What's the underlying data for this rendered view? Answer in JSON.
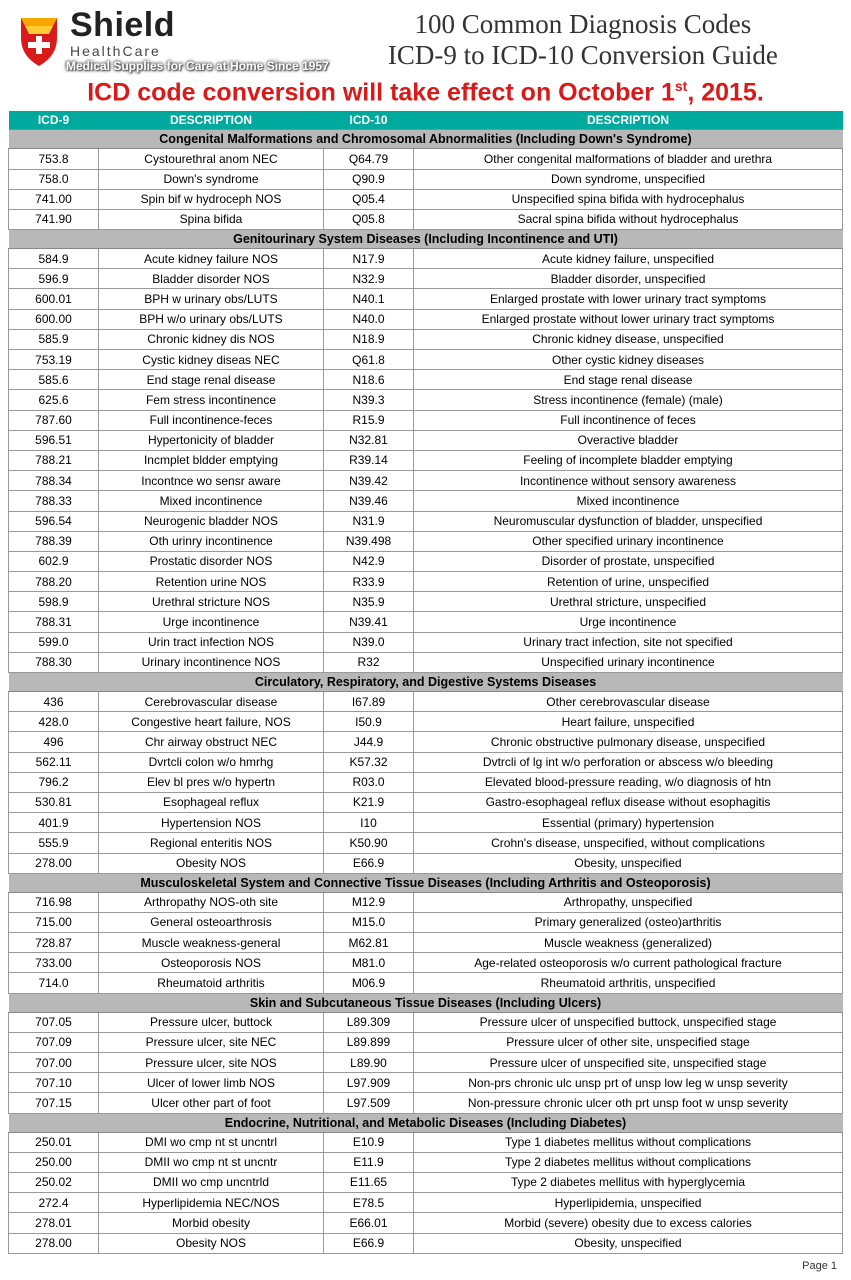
{
  "logo": {
    "name": "Shield",
    "sub": "HealthCare",
    "tagline": "Medical Supplies for Care at Home Since 1957"
  },
  "title": {
    "line1": "100 Common Diagnosis Codes",
    "line2": "ICD-9 to ICD-10 Conversion Guide"
  },
  "alert": "ICD code conversion will take effect on October 1",
  "alert_suffix": ", 2015.",
  "alert_sup": "st",
  "headers": {
    "icd9": "ICD-9",
    "desc1": "DESCRIPTION",
    "icd10": "ICD-10",
    "desc2": "DESCRIPTION"
  },
  "colors": {
    "header_bg": "#00a99d",
    "section_bg": "#b8b8b8",
    "alert": "#d91a1a",
    "logo_red": "#d91a1a",
    "logo_yellow": "#f7a600"
  },
  "sections": [
    {
      "title": "Congenital Malformations and Chromosomal Abnormalities (Including Down's Syndrome)",
      "rows": [
        [
          "753.8",
          "Cystourethral anom NEC",
          "Q64.79",
          "Other congenital malformations of bladder and urethra"
        ],
        [
          "758.0",
          "Down's syndrome",
          "Q90.9",
          "Down syndrome, unspecified"
        ],
        [
          "741.00",
          "Spin bif w hydroceph NOS",
          "Q05.4",
          "Unspecified spina bifida with hydrocephalus"
        ],
        [
          "741.90",
          "Spina bifida",
          "Q05.8",
          "Sacral spina bifida without hydrocephalus"
        ]
      ]
    },
    {
      "title": "Genitourinary System Diseases (Including Incontinence and UTI)",
      "rows": [
        [
          "584.9",
          "Acute kidney failure NOS",
          "N17.9",
          "Acute kidney failure, unspecified"
        ],
        [
          "596.9",
          "Bladder disorder NOS",
          "N32.9",
          "Bladder disorder, unspecified"
        ],
        [
          "600.01",
          "BPH w urinary obs/LUTS",
          "N40.1",
          "Enlarged prostate with lower urinary tract symptoms"
        ],
        [
          "600.00",
          "BPH w/o urinary obs/LUTS",
          "N40.0",
          "Enlarged prostate without lower urinary tract symptoms"
        ],
        [
          "585.9",
          "Chronic kidney dis NOS",
          "N18.9",
          "Chronic kidney disease, unspecified"
        ],
        [
          "753.19",
          "Cystic kidney diseas NEC",
          "Q61.8",
          "Other cystic kidney diseases"
        ],
        [
          "585.6",
          "End stage renal disease",
          "N18.6",
          "End stage renal disease"
        ],
        [
          "625.6",
          "Fem stress incontinence",
          "N39.3",
          "Stress incontinence (female) (male)"
        ],
        [
          "787.60",
          "Full incontinence-feces",
          "R15.9",
          "Full incontinence of feces"
        ],
        [
          "596.51",
          "Hypertonicity of bladder",
          "N32.81",
          "Overactive bladder"
        ],
        [
          "788.21",
          "Incmplet bldder emptying",
          "R39.14",
          "Feeling of incomplete bladder emptying"
        ],
        [
          "788.34",
          "Incontnce wo sensr aware",
          "N39.42",
          "Incontinence without sensory awareness"
        ],
        [
          "788.33",
          "Mixed incontinence",
          "N39.46",
          "Mixed incontinence"
        ],
        [
          "596.54",
          "Neurogenic bladder NOS",
          "N31.9",
          "Neuromuscular dysfunction of bladder, unspecified"
        ],
        [
          "788.39",
          "Oth urinry incontinence",
          "N39.498",
          "Other specified urinary incontinence"
        ],
        [
          "602.9",
          "Prostatic disorder NOS",
          "N42.9",
          "Disorder of prostate, unspecified"
        ],
        [
          "788.20",
          "Retention urine NOS",
          "R33.9",
          "Retention of urine, unspecified"
        ],
        [
          "598.9",
          "Urethral stricture NOS",
          "N35.9",
          "Urethral stricture, unspecified"
        ],
        [
          "788.31",
          "Urge incontinence",
          "N39.41",
          "Urge incontinence"
        ],
        [
          "599.0",
          "Urin tract infection NOS",
          "N39.0",
          "Urinary tract infection, site not specified"
        ],
        [
          "788.30",
          "Urinary incontinence NOS",
          "R32",
          "Unspecified urinary incontinence"
        ]
      ]
    },
    {
      "title": "Circulatory, Respiratory, and Digestive Systems Diseases",
      "rows": [
        [
          "436",
          "Cerebrovascular disease",
          "I67.89",
          "Other cerebrovascular disease"
        ],
        [
          "428.0",
          "Congestive heart failure, NOS",
          "I50.9",
          "Heart failure, unspecified"
        ],
        [
          "496",
          "Chr airway obstruct NEC",
          "J44.9",
          "Chronic obstructive pulmonary disease, unspecified"
        ],
        [
          "562.11",
          "Dvrtcli colon w/o hmrhg",
          "K57.32",
          "Dvtrcli of lg int w/o perforation or abscess w/o bleeding"
        ],
        [
          "796.2",
          "Elev bl pres w/o hypertn",
          "R03.0",
          "Elevated blood-pressure reading, w/o diagnosis of htn"
        ],
        [
          "530.81",
          "Esophageal reflux",
          "K21.9",
          "Gastro-esophageal reflux disease without esophagitis"
        ],
        [
          "401.9",
          "Hypertension NOS",
          "I10",
          "Essential (primary) hypertension"
        ],
        [
          "555.9",
          "Regional enteritis NOS",
          "K50.90",
          "Crohn's disease, unspecified, without complications"
        ],
        [
          "278.00",
          "Obesity NOS",
          "E66.9",
          "Obesity, unspecified"
        ]
      ]
    },
    {
      "title": "Musculoskeletal System and Connective Tissue Diseases (Including Arthritis and Osteoporosis)",
      "rows": [
        [
          "716.98",
          "Arthropathy NOS-oth site",
          "M12.9",
          "Arthropathy, unspecified"
        ],
        [
          "715.00",
          "General osteoarthrosis",
          "M15.0",
          "Primary generalized (osteo)arthritis"
        ],
        [
          "728.87",
          "Muscle weakness-general",
          "M62.81",
          "Muscle weakness (generalized)"
        ],
        [
          "733.00",
          "Osteoporosis NOS",
          "M81.0",
          "Age-related osteoporosis w/o current pathological fracture"
        ],
        [
          "714.0",
          "Rheumatoid arthritis",
          "M06.9",
          "Rheumatoid arthritis, unspecified"
        ]
      ]
    },
    {
      "title": "Skin and Subcutaneous Tissue Diseases (Including Ulcers)",
      "rows": [
        [
          "707.05",
          "Pressure ulcer, buttock",
          "L89.309",
          "Pressure ulcer of unspecified buttock, unspecified stage"
        ],
        [
          "707.09",
          "Pressure ulcer, site NEC",
          "L89.899",
          "Pressure ulcer of other site, unspecified stage"
        ],
        [
          "707.00",
          "Pressure ulcer, site NOS",
          "L89.90",
          "Pressure ulcer of unspecified site, unspecified stage"
        ],
        [
          "707.10",
          "Ulcer of lower limb NOS",
          "L97.909",
          "Non-prs chronic ulc unsp prt of unsp low leg w unsp severity"
        ],
        [
          "707.15",
          "Ulcer other part of foot",
          "L97.509",
          "Non-pressure chronic ulcer oth prt unsp foot w unsp severity"
        ]
      ]
    },
    {
      "title": "Endocrine, Nutritional, and Metabolic Diseases (Including Diabetes)",
      "rows": [
        [
          "250.01",
          "DMI wo cmp nt st uncntrl",
          "E10.9",
          "Type 1 diabetes mellitus without complications"
        ],
        [
          "250.00",
          "DMII wo cmp nt st uncntr",
          "E11.9",
          "Type 2 diabetes mellitus without complications"
        ],
        [
          "250.02",
          "DMII wo cmp uncntrld",
          "E11.65",
          "Type 2 diabetes mellitus with hyperglycemia"
        ],
        [
          "272.4",
          "Hyperlipidemia NEC/NOS",
          "E78.5",
          "Hyperlipidemia, unspecified"
        ],
        [
          "278.01",
          "Morbid obesity",
          "E66.01",
          "Morbid (severe) obesity due to excess calories"
        ],
        [
          "278.00",
          "Obesity NOS",
          "E66.9",
          "Obesity, unspecified"
        ]
      ]
    }
  ],
  "page": "Page 1"
}
